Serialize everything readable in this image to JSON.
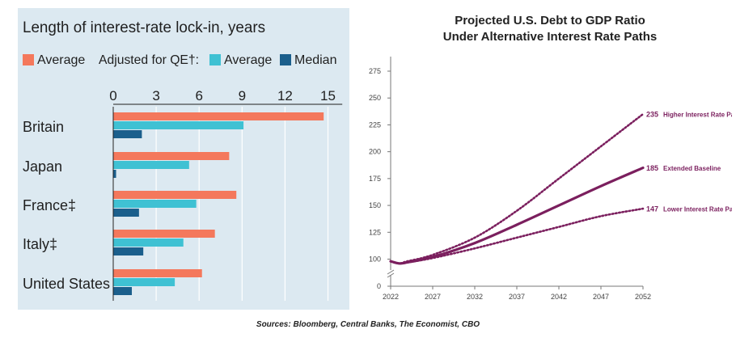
{
  "chart_data": [
    {
      "type": "bar",
      "orientation": "horizontal",
      "title": "Length of interest-rate lock-in, years",
      "legend_prefix": "Adjusted for QE†:",
      "categories": [
        "Britain",
        "Japan",
        "France‡",
        "Italy‡",
        "United States"
      ],
      "series": [
        {
          "name": "Average",
          "color": "#f4785c",
          "values": [
            14.7,
            8.1,
            8.6,
            7.1,
            6.2
          ]
        },
        {
          "name": "Average",
          "color": "#3fc1d3",
          "values": [
            9.1,
            5.3,
            5.8,
            4.9,
            4.3
          ]
        },
        {
          "name": "Median",
          "color": "#1b5f8c",
          "values": [
            2.0,
            0.2,
            1.8,
            2.1,
            1.3
          ]
        }
      ],
      "xticks": [
        "0",
        "3",
        "6",
        "9",
        "12",
        "15"
      ],
      "xlim": [
        0,
        16
      ],
      "xlabel": "",
      "ylabel": "",
      "legend_position": "top",
      "grid": true
    },
    {
      "type": "line",
      "title_lines": [
        "Projected U.S. Debt to GDP Ratio",
        "Under Alternative Interest Rate Paths"
      ],
      "x": [
        2022,
        2023,
        2024,
        2027,
        2032,
        2037,
        2042,
        2047,
        2052
      ],
      "xticks": [
        "2022",
        "2027",
        "2032",
        "2037",
        "2042",
        "2047",
        "2052"
      ],
      "yticks": [
        "0",
        "100",
        "125",
        "150",
        "175",
        "200",
        "225",
        "250",
        "275"
      ],
      "ylim": [
        0,
        275
      ],
      "axis_break": true,
      "xlabel": "",
      "ylabel": "",
      "series": [
        {
          "name": "Higher Interest Rate Path",
          "label": "235",
          "style": "dotted",
          "color": "#7b1f5e",
          "values": [
            98,
            96,
            98,
            104,
            120,
            145,
            175,
            205,
            235
          ]
        },
        {
          "name": "Extended Baseline",
          "label": "185",
          "style": "solid",
          "color": "#7b1f5e",
          "values": [
            98,
            96,
            97,
            102,
            115,
            132,
            150,
            168,
            185
          ]
        },
        {
          "name": "Lower Interest Rate Path",
          "label": "147",
          "style": "dotted",
          "color": "#7b1f5e",
          "values": [
            98,
            96,
            97,
            101,
            110,
            120,
            130,
            140,
            147
          ]
        }
      ],
      "label_suffixes": [
        "a",
        "",
        "b"
      ]
    }
  ],
  "source_text": "Sources: Bloomberg, Central Banks, The Economist, CBO"
}
